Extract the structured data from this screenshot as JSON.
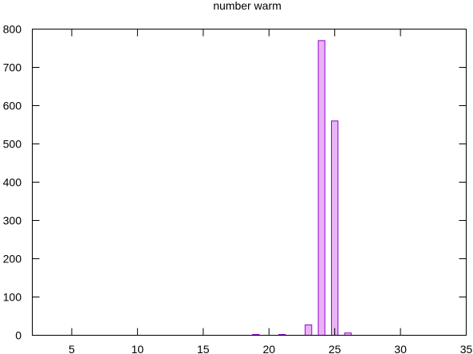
{
  "chart_data": {
    "type": "bar",
    "title": "number warm",
    "xlabel": "",
    "ylabel": "",
    "xlim": [
      2,
      35
    ],
    "ylim": [
      0,
      800
    ],
    "x_ticks": [
      5,
      10,
      15,
      20,
      25,
      30,
      35
    ],
    "y_ticks": [
      0,
      100,
      200,
      300,
      400,
      500,
      600,
      700,
      800
    ],
    "bar_width": 0.5,
    "x": [
      19,
      21,
      23,
      24,
      25,
      26
    ],
    "values": [
      2,
      2,
      27,
      770,
      560,
      6
    ],
    "grid": false,
    "legend": "none",
    "bar_fill": "#e9b3f5",
    "bar_stroke": "#9400d3"
  }
}
